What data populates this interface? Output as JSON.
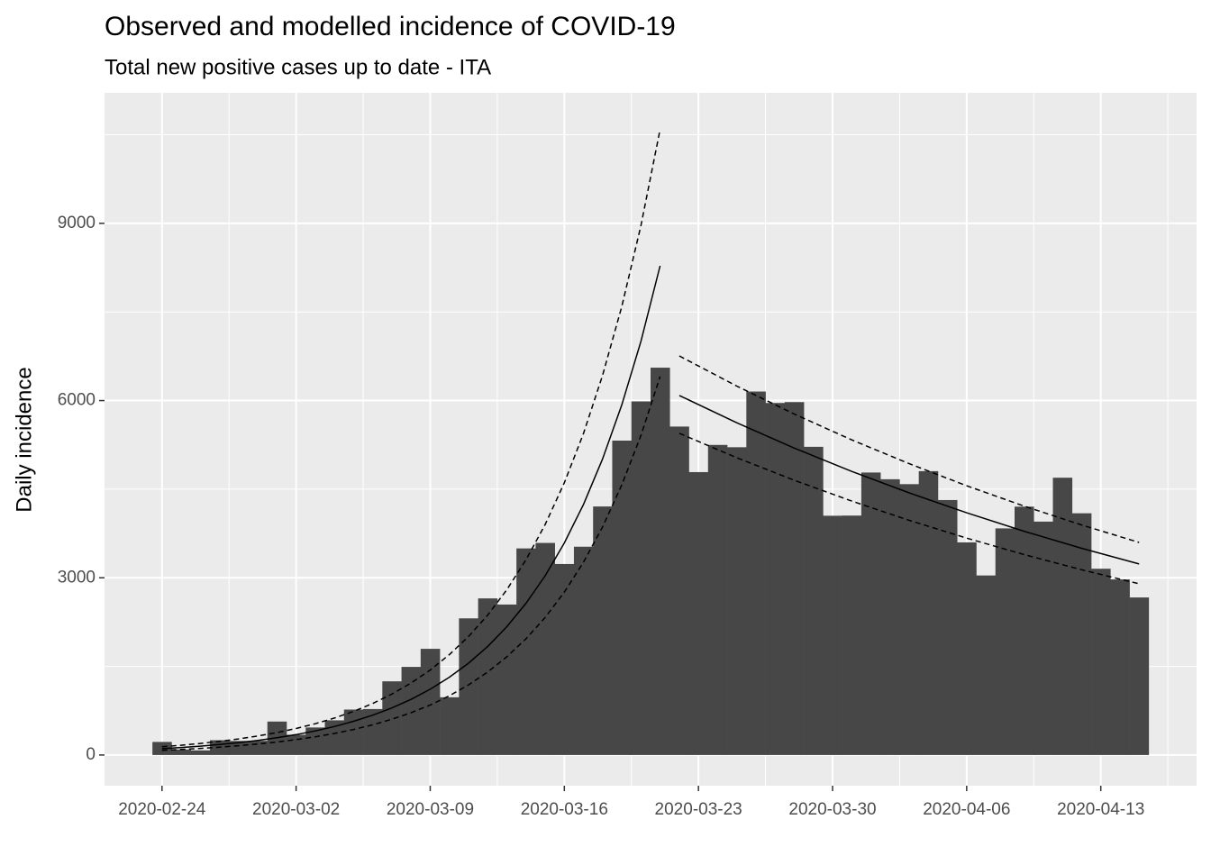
{
  "chart_data": {
    "type": "incidence",
    "title": "Observed and modelled incidence of COVID-19",
    "subtitle": "Total new positive cases up to date - ITA",
    "y_label": "Daily incidence",
    "color": "#474747",
    "line_color": "#000000",
    "grid": true,
    "categories": [
      "2020-02-24",
      "2020-02-25",
      "2020-02-26",
      "2020-02-27",
      "2020-02-28",
      "2020-02-29",
      "2020-03-01",
      "2020-03-02",
      "2020-03-03",
      "2020-03-04",
      "2020-03-05",
      "2020-03-06",
      "2020-03-07",
      "2020-03-08",
      "2020-03-09",
      "2020-03-10",
      "2020-03-11",
      "2020-03-12",
      "2020-03-13",
      "2020-03-14",
      "2020-03-15",
      "2020-03-16",
      "2020-03-17",
      "2020-03-18",
      "2020-03-19",
      "2020-03-20",
      "2020-03-21",
      "2020-03-22",
      "2020-03-23",
      "2020-03-24",
      "2020-03-25",
      "2020-03-26",
      "2020-03-27",
      "2020-03-28",
      "2020-03-29",
      "2020-03-30",
      "2020-03-31",
      "2020-04-01",
      "2020-04-02",
      "2020-04-03",
      "2020-04-04",
      "2020-04-05",
      "2020-04-06",
      "2020-04-07",
      "2020-04-08",
      "2020-04-09",
      "2020-04-10",
      "2020-04-11",
      "2020-04-12",
      "2020-04-13",
      "2020-04-14",
      "2020-04-15"
    ],
    "values": [
      221,
      93,
      78,
      250,
      238,
      240,
      566,
      342,
      466,
      587,
      769,
      778,
      1247,
      1492,
      1797,
      977,
      2313,
      2651,
      2547,
      3497,
      3590,
      3233,
      3526,
      4207,
      5322,
      5986,
      6557,
      5560,
      4789,
      5249,
      5210,
      6153,
      5959,
      5974,
      5217,
      4050,
      4053,
      4782,
      4668,
      4585,
      4805,
      4316,
      3599,
      3039,
      3836,
      4204,
      3951,
      4694,
      4092,
      3153,
      2972,
      2667
    ],
    "fits": [
      {
        "x": [
          "2020-02-24",
          "2020-02-25",
          "2020-02-26",
          "2020-02-27",
          "2020-02-28",
          "2020-02-29",
          "2020-03-01",
          "2020-03-02",
          "2020-03-03",
          "2020-03-04",
          "2020-03-05",
          "2020-03-06",
          "2020-03-07",
          "2020-03-08",
          "2020-03-09",
          "2020-03-10",
          "2020-03-11",
          "2020-03-12",
          "2020-03-13",
          "2020-03-14",
          "2020-03-15",
          "2020-03-16",
          "2020-03-17",
          "2020-03-18",
          "2020-03-19",
          "2020-03-20",
          "2020-03-21"
        ],
        "fit": [
          107,
          126,
          150,
          177,
          209,
          247,
          292,
          345,
          408,
          482,
          570,
          674,
          797,
          942,
          1113,
          1316,
          1555,
          1838,
          2173,
          2569,
          3036,
          3589,
          4242,
          5014,
          5927,
          7006,
          8281
        ],
        "upper": [
          140,
          165,
          195,
          231,
          272,
          322,
          380,
          449,
          530,
          626,
          739,
          873,
          1031,
          1218,
          1438,
          1699,
          2006,
          2369,
          2798,
          3305,
          3903,
          4609,
          5444,
          6429,
          7593,
          8967,
          10590
        ],
        "lower": [
          80,
          95,
          112,
          133,
          157,
          186,
          220,
          260,
          308,
          365,
          432,
          511,
          605,
          716,
          847,
          1003,
          1187,
          1405,
          1663,
          1968,
          2330,
          2757,
          3264,
          3863,
          4573,
          5412,
          6406
        ]
      },
      {
        "x": [
          "2020-03-22",
          "2020-03-25",
          "2020-03-28",
          "2020-03-31",
          "2020-04-03",
          "2020-04-06",
          "2020-04-09",
          "2020-04-12",
          "2020-04-15"
        ],
        "fit": [
          6086,
          5624,
          5196,
          4801,
          4437,
          4100,
          3788,
          3500,
          3234
        ],
        "upper": [
          6756,
          6245,
          5772,
          5335,
          4931,
          4558,
          4213,
          3894,
          3599
        ],
        "lower": [
          5445,
          5032,
          4651,
          4298,
          3972,
          3671,
          3393,
          3136,
          2898
        ]
      }
    ],
    "xlim": [
      "2020-02-21",
      "2020-04-18"
    ],
    "xticks": [
      "2020-02-24",
      "2020-03-02",
      "2020-03-09",
      "2020-03-16",
      "2020-03-23",
      "2020-03-30",
      "2020-04-06",
      "2020-04-13"
    ],
    "ylim": [
      -520,
      11210
    ],
    "yticks": [
      0,
      3000,
      6000,
      9000
    ]
  }
}
